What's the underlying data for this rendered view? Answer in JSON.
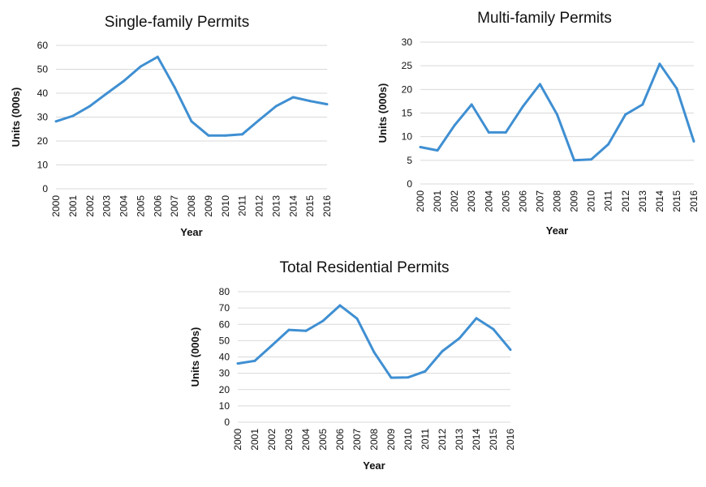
{
  "chart_data": [
    {
      "type": "line",
      "title": "Single-family Permits",
      "xlabel": "Year",
      "ylabel": "Units (000s)",
      "ylim": [
        0,
        60
      ],
      "yticks": [
        0,
        10,
        20,
        30,
        40,
        50,
        60
      ],
      "grid": true,
      "color": "#3f8fd2",
      "x": [
        "2000",
        "2001",
        "2002",
        "2003",
        "2004",
        "2005",
        "2006",
        "2007",
        "2008",
        "2009",
        "2010",
        "2011",
        "2012",
        "2013",
        "2014",
        "2015",
        "2016"
      ],
      "values": [
        28.2,
        30.5,
        34.6,
        39.9,
        45.1,
        51.2,
        55.2,
        42.5,
        28.2,
        22.3,
        22.3,
        22.8,
        28.8,
        34.6,
        38.3,
        36.7,
        35.4
      ]
    },
    {
      "type": "line",
      "title": "Multi-family Permits",
      "xlabel": "Year",
      "ylabel": "Units (000s)",
      "ylim": [
        0,
        30
      ],
      "yticks": [
        0,
        5,
        10,
        15,
        20,
        25,
        30
      ],
      "grid": true,
      "color": "#3f8fd2",
      "x": [
        "2000",
        "2001",
        "2002",
        "2003",
        "2004",
        "2005",
        "2006",
        "2007",
        "2008",
        "2009",
        "2010",
        "2011",
        "2012",
        "2013",
        "2014",
        "2015",
        "2016"
      ],
      "values": [
        7.8,
        7.1,
        12.4,
        16.8,
        10.9,
        10.9,
        16.4,
        21.1,
        14.7,
        5.0,
        5.2,
        8.4,
        14.7,
        16.8,
        25.4,
        20.2,
        9.0
      ]
    },
    {
      "type": "line",
      "title": "Total Residential Permits",
      "xlabel": "Year",
      "ylabel": "Units (000s)",
      "ylim": [
        0,
        80
      ],
      "yticks": [
        0,
        10,
        20,
        30,
        40,
        50,
        60,
        70,
        80
      ],
      "grid": true,
      "color": "#3f8fd2",
      "x": [
        "2000",
        "2001",
        "2002",
        "2003",
        "2004",
        "2005",
        "2006",
        "2007",
        "2008",
        "2009",
        "2010",
        "2011",
        "2012",
        "2013",
        "2014",
        "2015",
        "2016"
      ],
      "values": [
        36.0,
        37.6,
        47.0,
        56.6,
        56.0,
        62.1,
        71.6,
        63.5,
        42.9,
        27.3,
        27.5,
        31.2,
        43.5,
        51.4,
        63.7,
        57.0,
        44.4
      ]
    }
  ]
}
